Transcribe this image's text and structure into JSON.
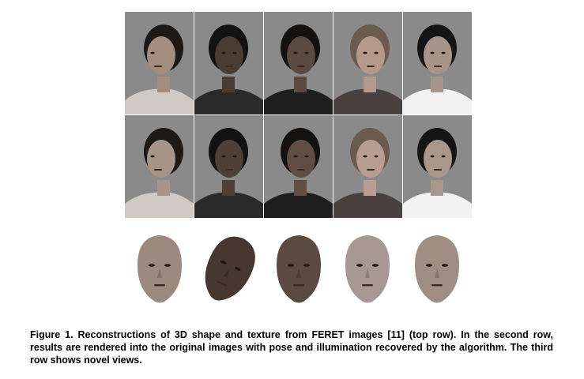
{
  "figure": {
    "rows": [
      {
        "id": "original-images",
        "faces": [
          {
            "hair": "#1c1917",
            "skin": "#a38d7e",
            "clothes": "#cfcac4",
            "facing": "right-profile"
          },
          {
            "hair": "#121212",
            "skin": "#4a3b33",
            "clothes": "#2a2a2a",
            "facing": "frontal"
          },
          {
            "hair": "#141210",
            "skin": "#5b4a40",
            "clothes": "#1e1e1e",
            "facing": "three-quarter"
          },
          {
            "hair": "#6a5a50",
            "skin": "#b59a8c",
            "clothes": "#4a4040",
            "facing": "three-quarter"
          },
          {
            "hair": "#151515",
            "skin": "#a8958a",
            "clothes": "#f2f2f2",
            "facing": "frontal"
          }
        ]
      },
      {
        "id": "rendered-into-originals",
        "faces": [
          {
            "hair": "#1c1917",
            "skin": "#a8958a",
            "clothes": "#cfcac4",
            "facing": "right-profile"
          },
          {
            "hair": "#121212",
            "skin": "#4e3f37",
            "clothes": "#2a2a2a",
            "facing": "frontal"
          },
          {
            "hair": "#141210",
            "skin": "#604e44",
            "clothes": "#1e1e1e",
            "facing": "three-quarter"
          },
          {
            "hair": "#6a5a50",
            "skin": "#b89e92",
            "clothes": "#4a4040",
            "facing": "three-quarter"
          },
          {
            "hair": "#151515",
            "skin": "#aa978b",
            "clothes": "#f2f2f2",
            "facing": "frontal"
          }
        ]
      }
    ],
    "novel_views": [
      {
        "skin": "#9a8a80",
        "tilt": 0
      },
      {
        "skin": "#463830",
        "tilt": 25
      },
      {
        "skin": "#5a4a42",
        "tilt": 0
      },
      {
        "skin": "#a89894",
        "tilt": 0
      },
      {
        "skin": "#9e8e84",
        "tilt": 0
      }
    ],
    "caption": "Figure 1. Reconstructions of 3D shape and texture from FERET images [11] (top row). In the second row, results are rendered into the original images with pose and illumination recovered by the algorithm. The third row shows novel views."
  }
}
